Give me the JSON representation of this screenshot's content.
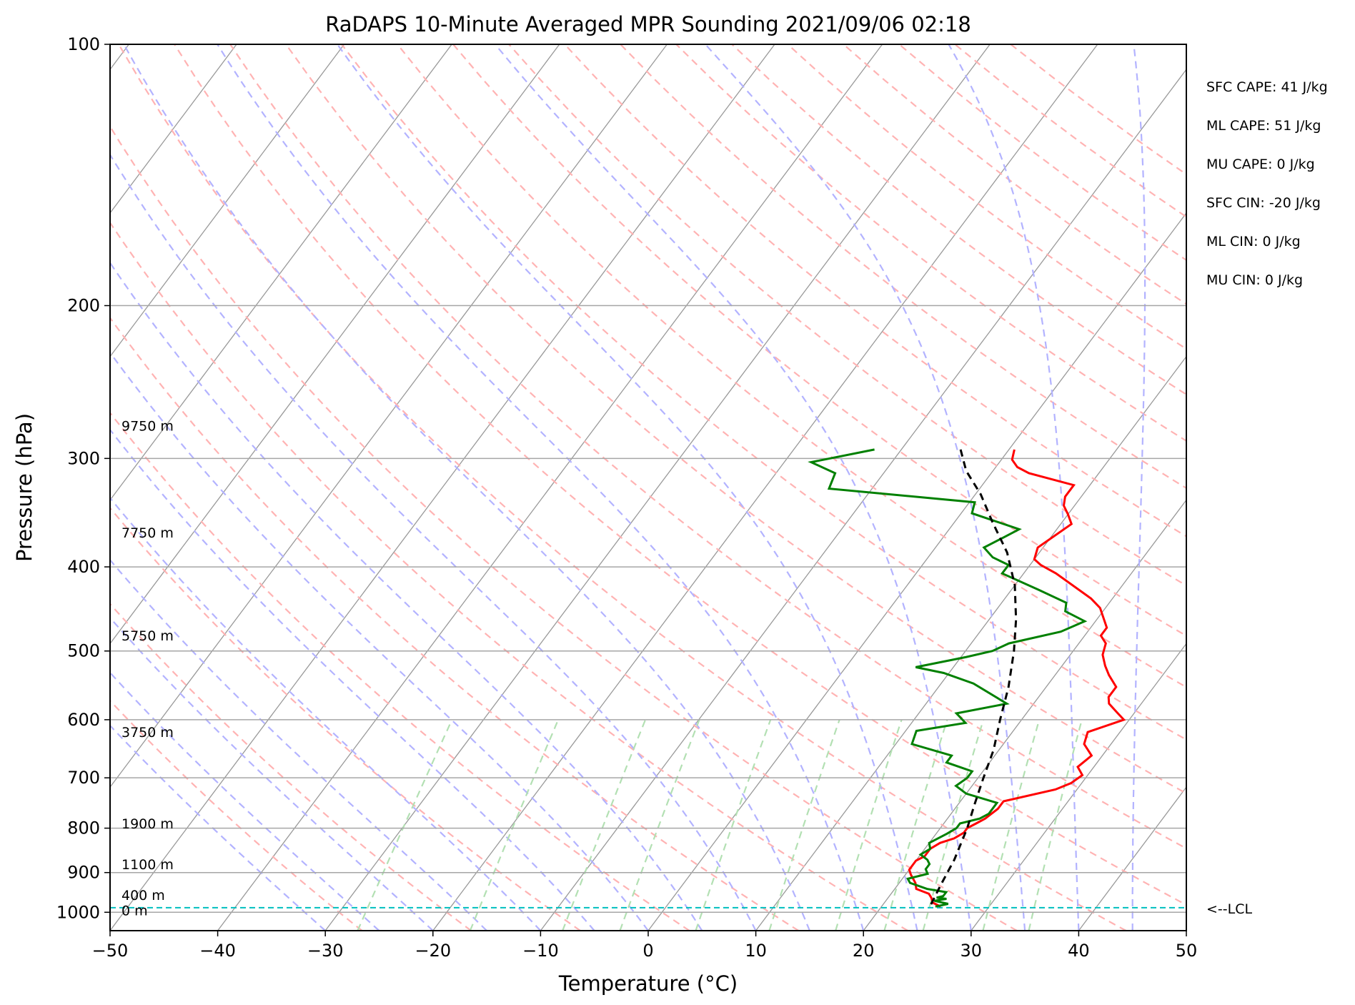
{
  "chart_data": {
    "type": "skew-t",
    "title": "RaDAPS 10-Minute Averaged MPR Sounding 2021/09/06 02:18",
    "xlabel": "Temperature (°C)",
    "ylabel": "Pressure (hPa)",
    "xlim": [
      -50,
      50
    ],
    "ylim": [
      1050,
      100
    ],
    "x_ticks": [
      "−50",
      "−40",
      "−30",
      "−20",
      "−10",
      "0",
      "10",
      "20",
      "30",
      "40",
      "50"
    ],
    "y_ticks": [
      "100",
      "200",
      "300",
      "400",
      "500",
      "600",
      "700",
      "800",
      "900",
      "1000"
    ],
    "y_scale": "log",
    "grid": true,
    "stats": [
      "SFC CAPE: 41 J/kg",
      "ML CAPE: 51 J/kg",
      "MU CAPE: 0 J/kg",
      "SFC CIN: -20 J/kg",
      "ML CIN: 0 J/kg",
      "MU CIN: 0 J/kg"
    ],
    "height_labels": [
      {
        "text": "9750 m",
        "p": 275
      },
      {
        "text": "7750 m",
        "p": 365
      },
      {
        "text": "5750 m",
        "p": 480
      },
      {
        "text": "3750 m",
        "p": 620
      },
      {
        "text": "1900 m",
        "p": 790
      },
      {
        "text": "1100 m",
        "p": 880
      },
      {
        "text": "400 m",
        "p": 955
      },
      {
        "text": "0 m",
        "p": 995
      }
    ],
    "lcl": {
      "label": "<--LCL",
      "p": 988
    },
    "temperature": {
      "color": "#ff0000",
      "points": [
        [
          0.5,
          293
        ],
        [
          1,
          301
        ],
        [
          2,
          307
        ],
        [
          3.5,
          312
        ],
        [
          8.5,
          322
        ],
        [
          8.5,
          332
        ],
        [
          9,
          340
        ],
        [
          10,
          348
        ],
        [
          11,
          357
        ],
        [
          9.5,
          380
        ],
        [
          10,
          392
        ],
        [
          11,
          398
        ],
        [
          13,
          407
        ],
        [
          18,
          435
        ],
        [
          19.5,
          446
        ],
        [
          21.5,
          470
        ],
        [
          21.5,
          480
        ],
        [
          22.5,
          490
        ],
        [
          23,
          505
        ],
        [
          24,
          520
        ],
        [
          25,
          533
        ],
        [
          26.5,
          550
        ],
        [
          26.5,
          565
        ],
        [
          27,
          575
        ],
        [
          28.5,
          590
        ],
        [
          29.5,
          600
        ],
        [
          27,
          620
        ],
        [
          27.5,
          640
        ],
        [
          29,
          660
        ],
        [
          28.5,
          680
        ],
        [
          29.5,
          695
        ],
        [
          29,
          710
        ],
        [
          28,
          722
        ],
        [
          24,
          745
        ],
        [
          24,
          760
        ],
        [
          23.5,
          780
        ],
        [
          23,
          790
        ],
        [
          22.5,
          800
        ],
        [
          22.5,
          810
        ],
        [
          22,
          822
        ],
        [
          21,
          832
        ],
        [
          20.5,
          845
        ],
        [
          20.5,
          862
        ],
        [
          20,
          872
        ],
        [
          20,
          893
        ],
        [
          20.5,
          905
        ],
        [
          21.5,
          925
        ],
        [
          22,
          940
        ],
        [
          23.5,
          952
        ],
        [
          24,
          962
        ],
        [
          24.5,
          975
        ],
        [
          25.5,
          985
        ]
      ]
    },
    "dewpoint": {
      "color": "#008000",
      "points": [
        [
          -12.5,
          293
        ],
        [
          -17.5,
          303
        ],
        [
          -14.5,
          312
        ],
        [
          -14,
          325
        ],
        [
          0.5,
          337
        ],
        [
          1,
          347
        ],
        [
          6.5,
          362
        ],
        [
          5.5,
          371
        ],
        [
          4.5,
          380
        ],
        [
          6,
          390
        ],
        [
          8,
          398
        ],
        [
          8,
          407
        ],
        [
          12.5,
          425
        ],
        [
          16,
          440
        ],
        [
          16.5,
          450
        ],
        [
          19,
          462
        ],
        [
          17.5,
          475
        ],
        [
          13.5,
          490
        ],
        [
          12.5,
          500
        ],
        [
          10.5,
          508
        ],
        [
          6.5,
          522
        ],
        [
          9.5,
          530
        ],
        [
          13,
          545
        ],
        [
          17.5,
          575
        ],
        [
          13.5,
          590
        ],
        [
          15,
          605
        ],
        [
          11,
          618
        ],
        [
          11.5,
          640
        ],
        [
          16,
          660
        ],
        [
          16,
          672
        ],
        [
          19,
          688
        ],
        [
          19,
          700
        ],
        [
          18.5,
          715
        ],
        [
          20,
          730
        ],
        [
          23.5,
          748
        ],
        [
          23.5,
          770
        ],
        [
          23,
          780
        ],
        [
          21.5,
          790
        ],
        [
          21.5,
          800
        ],
        [
          21,
          812
        ],
        [
          20,
          832
        ],
        [
          20.5,
          845
        ],
        [
          20,
          858
        ],
        [
          21,
          870
        ],
        [
          21.5,
          880
        ],
        [
          21.5,
          892
        ],
        [
          22,
          903
        ],
        [
          20.5,
          915
        ],
        [
          21,
          925
        ],
        [
          23,
          940
        ],
        [
          25,
          948
        ],
        [
          25,
          958
        ],
        [
          24.5,
          962
        ],
        [
          25.5,
          965
        ],
        [
          24.5,
          970
        ],
        [
          26,
          978
        ],
        [
          25,
          985
        ]
      ]
    },
    "parcel": {
      "color": "#000000",
      "points": [
        [
          -4.5,
          293
        ],
        [
          -2.5,
          310
        ],
        [
          0.5,
          330
        ],
        [
          3.5,
          355
        ],
        [
          7,
          385
        ],
        [
          10,
          420
        ],
        [
          12.5,
          460
        ],
        [
          14.5,
          500
        ],
        [
          16.5,
          550
        ],
        [
          18,
          600
        ],
        [
          19.5,
          650
        ],
        [
          20.5,
          700
        ],
        [
          21.5,
          750
        ],
        [
          22.5,
          800
        ],
        [
          23.5,
          870
        ],
        [
          24,
          930
        ],
        [
          24.5,
          985
        ]
      ]
    },
    "background": {
      "isotherm_color": "#999999",
      "dry_adiabat_color": "#ffb3b3",
      "moist_adiabat_color": "#b3b3ff",
      "mixing_ratio_color": "#b3e0b3",
      "pressure_grid_color": "#a6a6a6",
      "lcl_color": "#00bfbf"
    }
  }
}
